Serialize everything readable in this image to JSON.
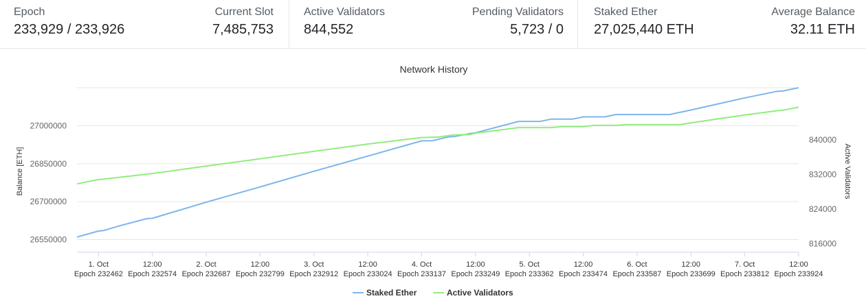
{
  "stats": {
    "epoch": {
      "label": "Epoch",
      "value": "233,929 / 233,926"
    },
    "current_slot": {
      "label": "Current Slot",
      "value": "7,485,753"
    },
    "active_validators": {
      "label": "Active Validators",
      "value": "844,552"
    },
    "pending_validators": {
      "label": "Pending Validators",
      "value": "5,723 / 0"
    },
    "staked_ether": {
      "label": "Staked Ether",
      "value": "27,025,440 ETH"
    },
    "average_balance": {
      "label": "Average Balance",
      "value": "32.11 ETH"
    }
  },
  "chart_data": {
    "type": "line",
    "title": "Network History",
    "ylabel": "Balance [ETH]",
    "ylabel_right": "Active Validators",
    "ylim": [
      26500000,
      27150000
    ],
    "ylim_right": [
      814000,
      852000
    ],
    "y_ticks": [
      "26550000",
      "26700000",
      "26850000",
      "27000000"
    ],
    "y_ticks_right": [
      "816000",
      "824000",
      "832000",
      "840000"
    ],
    "x_ticks": [
      {
        "x": 1.0,
        "line1": "1. Oct",
        "line2": "Epoch 232462"
      },
      {
        "x": 1.5,
        "line1": "12:00",
        "line2": "Epoch 232574"
      },
      {
        "x": 2.0,
        "line1": "2. Oct",
        "line2": "Epoch 232687"
      },
      {
        "x": 2.5,
        "line1": "12:00",
        "line2": "Epoch 232799"
      },
      {
        "x": 3.0,
        "line1": "3. Oct",
        "line2": "Epoch 232912"
      },
      {
        "x": 3.5,
        "line1": "12:00",
        "line2": "Epoch 233024"
      },
      {
        "x": 4.0,
        "line1": "4. Oct",
        "line2": "Epoch 233137"
      },
      {
        "x": 4.5,
        "line1": "12:00",
        "line2": "Epoch 233249"
      },
      {
        "x": 5.0,
        "line1": "5. Oct",
        "line2": "Epoch 233362"
      },
      {
        "x": 5.5,
        "line1": "12:00",
        "line2": "Epoch 233474"
      },
      {
        "x": 6.0,
        "line1": "6. Oct",
        "line2": "Epoch 233587"
      },
      {
        "x": 6.5,
        "line1": "12:00",
        "line2": "Epoch 233699"
      },
      {
        "x": 7.0,
        "line1": "7. Oct",
        "line2": "Epoch 233812"
      },
      {
        "x": 7.5,
        "line1": "12:00",
        "line2": "Epoch 233924"
      }
    ],
    "xlim": [
      0.8,
      7.5
    ],
    "grid": true,
    "legend_position": "bottom-center",
    "series": [
      {
        "name": "Staked Ether",
        "axis": "left",
        "color": "#7cb5ec",
        "points": [
          [
            0.8,
            26560000
          ],
          [
            1.0,
            26584000
          ],
          [
            1.05,
            26586000
          ],
          [
            1.2,
            26605000
          ],
          [
            1.45,
            26633000
          ],
          [
            1.5,
            26634000
          ],
          [
            2.0,
            26698000
          ],
          [
            2.5,
            26758000
          ],
          [
            3.0,
            26820000
          ],
          [
            3.5,
            26880000
          ],
          [
            4.0,
            26940000
          ],
          [
            4.1,
            26941000
          ],
          [
            4.25,
            26956000
          ],
          [
            4.3,
            26957000
          ],
          [
            4.45,
            26969000
          ],
          [
            4.5,
            26972000
          ],
          [
            4.9,
            27017000
          ],
          [
            5.1,
            27017000
          ],
          [
            5.2,
            27026000
          ],
          [
            5.4,
            27026000
          ],
          [
            5.5,
            27035000
          ],
          [
            5.7,
            27035000
          ],
          [
            5.8,
            27044000
          ],
          [
            6.3,
            27044000
          ],
          [
            6.5,
            27062000
          ],
          [
            7.0,
            27110000
          ],
          [
            7.3,
            27136000
          ],
          [
            7.35,
            27137000
          ],
          [
            7.5,
            27150000
          ]
        ]
      },
      {
        "name": "Active Validators",
        "axis": "right",
        "color": "#90ed7d",
        "points": [
          [
            0.8,
            829800
          ],
          [
            1.0,
            830800
          ],
          [
            1.05,
            830900
          ],
          [
            1.5,
            832200
          ],
          [
            2.0,
            833900
          ],
          [
            2.5,
            835600
          ],
          [
            3.0,
            837300
          ],
          [
            3.5,
            839000
          ],
          [
            4.0,
            840500
          ],
          [
            4.15,
            840600
          ],
          [
            4.3,
            841100
          ],
          [
            4.45,
            841200
          ],
          [
            4.5,
            841500
          ],
          [
            4.9,
            842800
          ],
          [
            5.2,
            842800
          ],
          [
            5.3,
            843000
          ],
          [
            5.5,
            843000
          ],
          [
            5.6,
            843300
          ],
          [
            5.8,
            843300
          ],
          [
            5.9,
            843500
          ],
          [
            6.4,
            843500
          ],
          [
            6.5,
            843900
          ],
          [
            7.0,
            845700
          ],
          [
            7.3,
            846700
          ],
          [
            7.35,
            846800
          ],
          [
            7.5,
            847500
          ]
        ]
      }
    ]
  }
}
